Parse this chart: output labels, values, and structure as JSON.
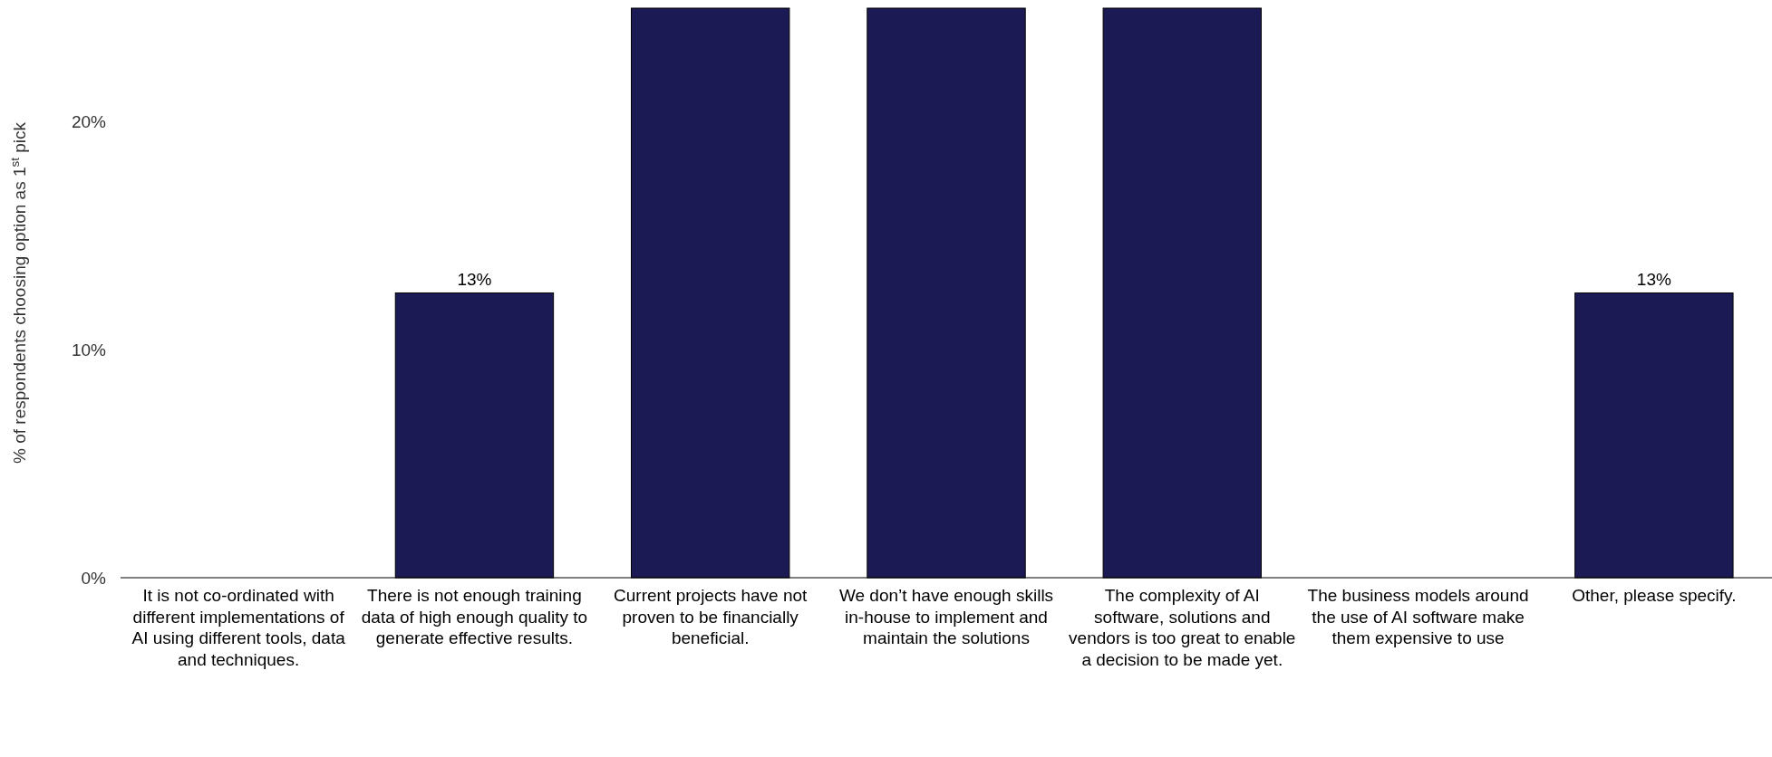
{
  "chart_data": {
    "type": "bar",
    "ylabel": "% of respondents choosing option as 1$^{st}$ pick",
    "categories": [
      "It is not co-ordinated with different implementations of AI using different tools, data and techniques.",
      "There is not enough training data of high enough quality to generate effective results.",
      "Current projects have not proven to be financially beneficial.",
      "We don’t have enough skills in-house to implement and maintain the solutions",
      "The complexity of AI software, solutions and vendors is too great to enable a decision to be made yet.",
      "The business models around the use of AI software make them expensive to use",
      "Other, please specify."
    ],
    "values": [
      0,
      12.5,
      25,
      25,
      25,
      0,
      12.5
    ],
    "value_labels": [
      null,
      "13%",
      null,
      null,
      null,
      null,
      "13%"
    ],
    "color": "#1b1a55",
    "ylim": [
      0,
      25
    ],
    "yticks": [
      {
        "value": 0,
        "label": "0%"
      },
      {
        "value": 10,
        "label": "10%"
      },
      {
        "value": 20,
        "label": "20%"
      }
    ],
    "grid": false
  }
}
